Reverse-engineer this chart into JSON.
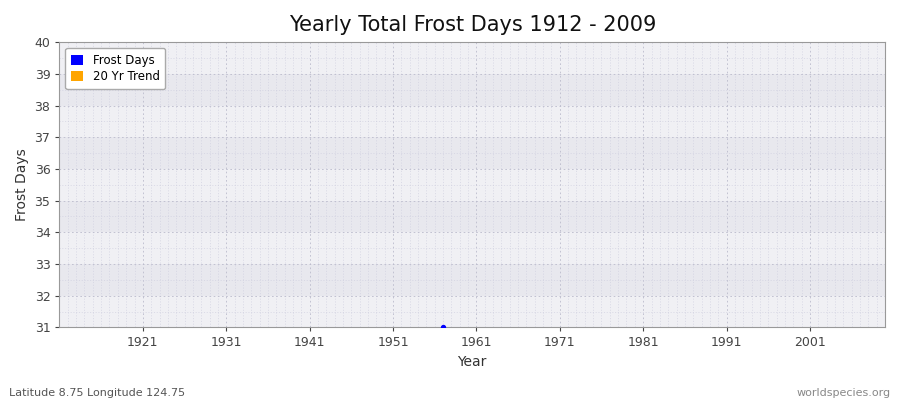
{
  "title": "Yearly Total Frost Days 1912 - 2009",
  "xlabel": "Year",
  "ylabel": "Frost Days",
  "xlim": [
    1911,
    2010
  ],
  "ylim": [
    31,
    40
  ],
  "yticks": [
    31,
    32,
    33,
    34,
    35,
    36,
    37,
    38,
    39,
    40
  ],
  "xticks": [
    1921,
    1931,
    1941,
    1951,
    1961,
    1971,
    1981,
    1991,
    2001
  ],
  "data_point_year": 1957,
  "data_point_value": 31,
  "data_point_color": "#0000ff",
  "legend_items": [
    {
      "label": "Frost Days",
      "color": "#0000ff"
    },
    {
      "label": "20 Yr Trend",
      "color": "#ffa500"
    }
  ],
  "bg_color": "#ffffff",
  "plot_bg_color": "#ffffff",
  "band_colors": [
    "#f0f0f4",
    "#e8e8ee"
  ],
  "grid_minor_color": "#ccccdd",
  "grid_major_color": "#bbbbcc",
  "subtitle": "Latitude 8.75 Longitude 124.75",
  "watermark": "worldspecies.org",
  "title_fontsize": 15,
  "axis_label_fontsize": 10,
  "tick_label_fontsize": 9
}
